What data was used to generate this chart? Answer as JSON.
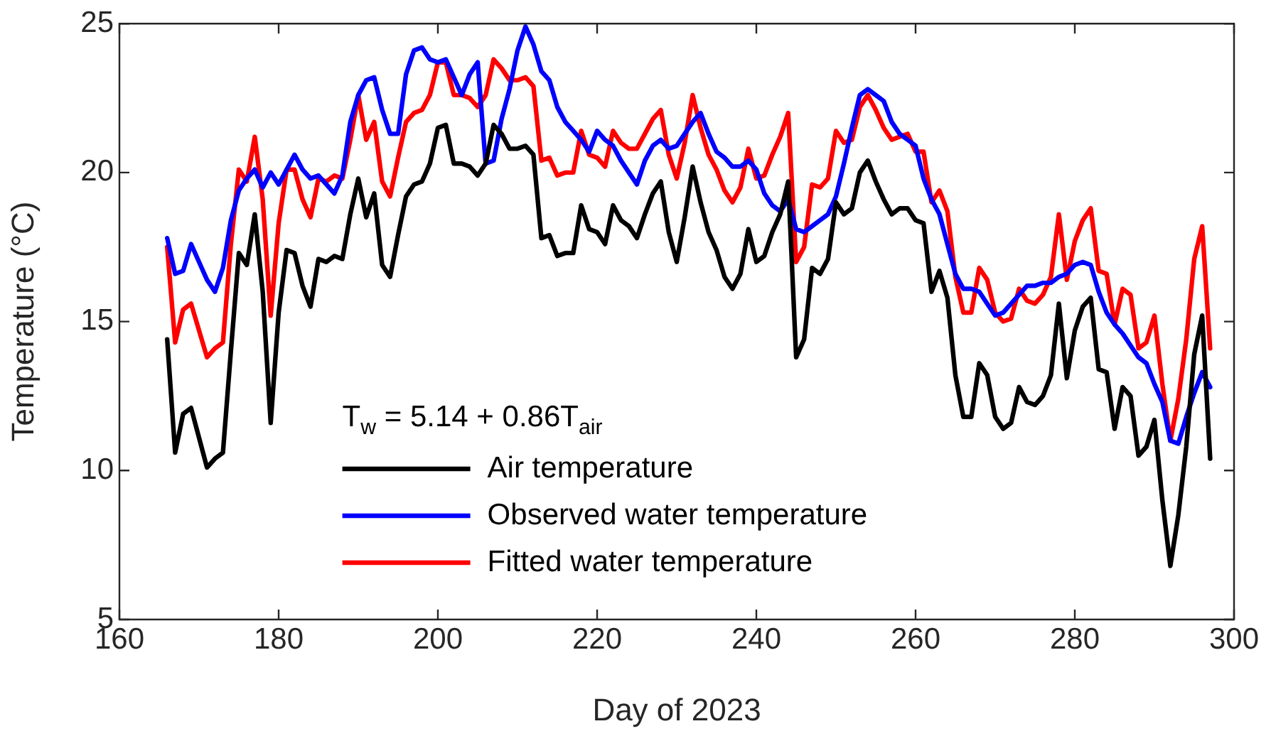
{
  "chart_data": {
    "type": "line",
    "xlabel": "Day of 2023",
    "ylabel": "Temperature (°C)",
    "x": [
      166,
      167,
      168,
      169,
      170,
      171,
      172,
      173,
      174,
      175,
      176,
      177,
      178,
      179,
      180,
      181,
      182,
      183,
      184,
      185,
      186,
      187,
      188,
      189,
      190,
      191,
      192,
      193,
      194,
      195,
      196,
      197,
      198,
      199,
      200,
      201,
      202,
      203,
      204,
      205,
      206,
      207,
      208,
      209,
      210,
      211,
      212,
      213,
      214,
      215,
      216,
      217,
      218,
      219,
      220,
      221,
      222,
      223,
      224,
      225,
      226,
      227,
      228,
      229,
      230,
      231,
      232,
      233,
      234,
      235,
      236,
      237,
      238,
      239,
      240,
      241,
      242,
      243,
      244,
      245,
      246,
      247,
      248,
      249,
      250,
      251,
      252,
      253,
      254,
      255,
      256,
      257,
      258,
      259,
      260,
      261,
      262,
      263,
      264,
      265,
      266,
      267,
      268,
      269,
      270,
      271,
      272,
      273,
      274,
      275,
      276,
      277,
      278,
      279,
      280,
      281,
      282,
      283,
      284,
      285,
      286,
      287,
      288,
      289,
      290,
      291,
      292,
      293,
      294,
      295,
      296,
      297
    ],
    "series": [
      {
        "name": "Air temperature",
        "color": "#000000",
        "values": [
          14.4,
          10.6,
          11.9,
          12.1,
          11.1,
          10.1,
          10.4,
          10.6,
          14.0,
          17.3,
          16.9,
          18.6,
          16.0,
          11.6,
          15.3,
          17.4,
          17.3,
          16.2,
          15.5,
          17.1,
          17.0,
          17.2,
          17.1,
          18.6,
          19.8,
          18.5,
          19.3,
          16.9,
          16.5,
          17.9,
          19.2,
          19.6,
          19.7,
          20.3,
          21.5,
          21.6,
          20.3,
          20.3,
          20.2,
          19.9,
          20.3,
          21.6,
          21.3,
          20.8,
          20.8,
          20.9,
          20.6,
          17.8,
          17.9,
          17.2,
          17.3,
          17.3,
          18.9,
          18.1,
          18.0,
          17.6,
          18.9,
          18.4,
          18.2,
          17.8,
          18.6,
          19.3,
          19.7,
          18.0,
          17.0,
          18.5,
          20.2,
          19.0,
          18.0,
          17.4,
          16.5,
          16.1,
          16.6,
          18.1,
          17.0,
          17.2,
          18.0,
          18.6,
          19.7,
          13.8,
          14.4,
          16.8,
          16.6,
          17.1,
          19.0,
          18.6,
          18.8,
          20.0,
          20.4,
          19.7,
          19.1,
          18.6,
          18.8,
          18.8,
          18.4,
          18.3,
          16.0,
          16.7,
          15.8,
          13.2,
          11.8,
          11.8,
          13.6,
          13.2,
          11.8,
          11.4,
          11.6,
          12.8,
          12.3,
          12.2,
          12.5,
          13.2,
          15.6,
          13.1,
          14.7,
          15.5,
          15.8,
          13.4,
          13.3,
          11.4,
          12.8,
          12.5,
          10.5,
          10.8,
          11.7,
          9.0,
          6.8,
          8.5,
          10.8,
          13.9,
          15.2,
          10.4
        ]
      },
      {
        "name": "Observed water temperature",
        "color": "#0000ff",
        "values": [
          17.8,
          16.6,
          16.7,
          17.6,
          17.0,
          16.4,
          16.0,
          16.8,
          18.4,
          19.4,
          19.8,
          20.1,
          19.5,
          20.0,
          19.6,
          20.1,
          20.6,
          20.1,
          19.8,
          19.9,
          19.6,
          19.3,
          19.9,
          21.7,
          22.6,
          23.1,
          23.2,
          22.1,
          21.3,
          21.3,
          23.3,
          24.1,
          24.2,
          23.8,
          23.7,
          23.8,
          23.2,
          22.6,
          23.3,
          23.7,
          20.3,
          20.4,
          21.8,
          22.8,
          24.1,
          24.9,
          24.3,
          23.4,
          23.1,
          22.2,
          21.7,
          21.4,
          21.1,
          20.7,
          21.4,
          21.1,
          20.9,
          20.4,
          20.0,
          19.6,
          20.4,
          20.9,
          21.1,
          20.8,
          20.9,
          21.3,
          21.7,
          22.0,
          21.3,
          20.7,
          20.5,
          20.2,
          20.2,
          20.4,
          20.1,
          19.3,
          18.9,
          18.7,
          19.1,
          18.1,
          18.0,
          18.2,
          18.4,
          18.6,
          19.2,
          20.3,
          21.5,
          22.6,
          22.8,
          22.6,
          22.4,
          21.7,
          21.3,
          21.1,
          20.9,
          19.8,
          19.1,
          18.6,
          17.6,
          16.6,
          16.1,
          16.1,
          16.0,
          15.6,
          15.2,
          15.3,
          15.6,
          15.9,
          16.2,
          16.2,
          16.3,
          16.3,
          16.5,
          16.6,
          16.9,
          17.0,
          16.9,
          16.0,
          15.3,
          14.9,
          14.6,
          14.2,
          13.8,
          13.6,
          12.9,
          12.3,
          11.0,
          10.9,
          11.8,
          12.6,
          13.3,
          12.8
        ]
      },
      {
        "name": "Fitted water temperature",
        "color": "#ff0000",
        "values": [
          17.5,
          14.3,
          15.4,
          15.6,
          14.7,
          13.8,
          14.1,
          14.3,
          17.6,
          20.1,
          19.7,
          21.2,
          19.1,
          15.2,
          18.3,
          20.1,
          20.1,
          19.1,
          18.5,
          19.8,
          19.7,
          19.9,
          19.8,
          21.1,
          22.6,
          21.1,
          21.7,
          19.7,
          19.2,
          20.5,
          21.7,
          22.0,
          22.1,
          22.6,
          23.7,
          23.7,
          22.6,
          22.6,
          22.5,
          22.2,
          22.6,
          23.8,
          23.5,
          23.1,
          23.1,
          23.2,
          22.9,
          20.4,
          20.5,
          19.9,
          20.0,
          20.0,
          21.4,
          20.6,
          20.5,
          20.2,
          21.4,
          21.0,
          20.8,
          20.8,
          21.3,
          21.8,
          22.1,
          20.6,
          19.8,
          21.0,
          22.6,
          21.5,
          20.6,
          20.1,
          19.4,
          19.0,
          19.5,
          20.8,
          19.8,
          19.9,
          20.6,
          21.2,
          22.0,
          17.0,
          17.5,
          19.6,
          19.5,
          19.8,
          21.4,
          21.0,
          21.1,
          22.2,
          22.6,
          22.1,
          21.5,
          21.1,
          21.2,
          21.3,
          20.7,
          20.7,
          19.0,
          19.4,
          18.7,
          16.5,
          15.3,
          15.3,
          16.8,
          16.4,
          15.3,
          15.0,
          15.1,
          16.1,
          15.7,
          15.6,
          15.9,
          16.5,
          18.6,
          16.4,
          17.7,
          18.4,
          18.8,
          16.7,
          16.6,
          14.9,
          16.1,
          15.9,
          14.1,
          14.3,
          15.2,
          12.9,
          11.0,
          12.4,
          14.4,
          17.1,
          18.2,
          14.1
        ]
      }
    ],
    "xlim": [
      160,
      300
    ],
    "xticks": [
      160,
      180,
      200,
      220,
      240,
      260,
      280,
      300
    ],
    "ylim": [
      5,
      25
    ],
    "yticks": [
      5,
      10,
      15,
      20,
      25
    ],
    "annotations": [
      "T$_{w}$ = 5.14 + 0.86T$_{air}$"
    ],
    "legend": "bottom",
    "grid": false,
    "marker": "none",
    "line_style": "solid"
  }
}
